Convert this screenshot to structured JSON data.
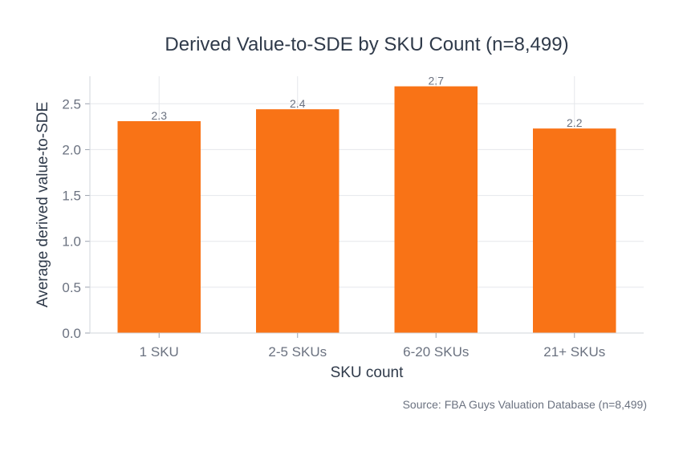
{
  "chart_data": {
    "type": "bar",
    "title": "Derived Value-to-SDE by SKU Count (n=8,499)",
    "xlabel": "SKU count",
    "ylabel": "Average derived value-to-SDE",
    "categories": [
      "1 SKU",
      "2-5 SKUs",
      "6-20 SKUs",
      "21+ SKUs"
    ],
    "values": [
      2.31,
      2.44,
      2.69,
      2.23
    ],
    "data_labels": [
      "2.3",
      "2.4",
      "2.7",
      "2.2"
    ],
    "ylim": [
      0,
      2.8
    ],
    "yticks": [
      0.0,
      0.5,
      1.0,
      1.5,
      2.0,
      2.5
    ],
    "ytick_labels": [
      "0.0",
      "0.5",
      "1.0",
      "1.5",
      "2.0",
      "2.5"
    ],
    "grid": true,
    "bar_color": "#f97316",
    "source": "Source: FBA Guys Valuation Database (n=8,499)"
  }
}
